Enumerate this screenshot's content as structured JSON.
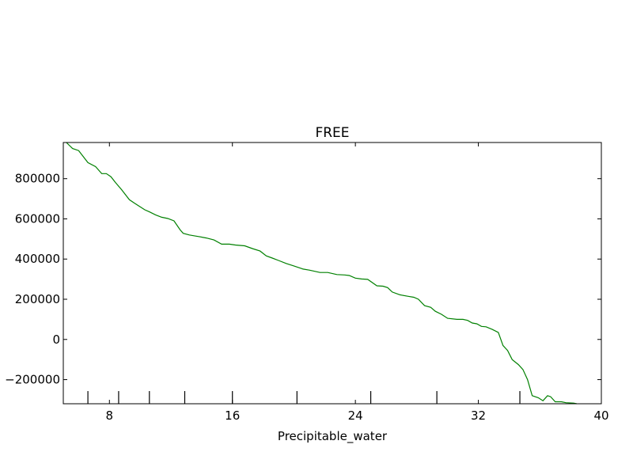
{
  "chart_data": {
    "type": "line",
    "title": "FREE",
    "xlabel": "Precipitable_water",
    "ylabel": "",
    "xlim": [
      5.0,
      40.0
    ],
    "ylim": [
      -320000,
      980000
    ],
    "xticks": [
      8,
      16,
      24,
      32,
      40
    ],
    "xtick_labels": [
      "8",
      "16",
      "24",
      "32",
      "40"
    ],
    "yticks": [
      -200000,
      0,
      200000,
      400000,
      600000,
      800000
    ],
    "ytick_labels": [
      "−200000",
      "0",
      "200000",
      "400000",
      "600000",
      "800000"
    ],
    "rug_x": [
      6.6,
      8.6,
      10.6,
      12.9,
      16.0,
      20.2,
      25.0,
      29.3,
      34.7
    ],
    "grid": false,
    "series": [
      {
        "color": "#008000",
        "x": [
          5.2,
          5.6,
          6.0,
          6.6,
          7.1,
          7.5,
          7.8,
          8.1,
          8.4,
          8.8,
          9.3,
          9.6,
          9.9,
          10.3,
          10.6,
          11.0,
          11.4,
          11.8,
          12.2,
          12.6,
          12.8,
          13.2,
          13.8,
          14.3,
          14.8,
          15.3,
          15.8,
          16.2,
          16.8,
          17.3,
          17.8,
          18.2,
          18.6,
          19.0,
          19.5,
          20.0,
          20.6,
          21.0,
          21.7,
          22.2,
          22.8,
          23.3,
          23.6,
          24.0,
          24.4,
          24.8,
          25.4,
          25.8,
          26.1,
          26.4,
          26.9,
          27.4,
          27.8,
          28.1,
          28.5,
          28.9,
          29.2,
          29.6,
          30.0,
          30.6,
          31.0,
          31.3,
          31.6,
          31.9,
          32.2,
          32.5,
          32.9,
          33.3,
          33.6,
          33.9,
          34.2,
          34.6,
          34.9,
          35.2,
          35.5,
          35.9,
          36.2,
          36.5,
          36.7,
          37.0,
          37.4,
          37.7,
          38.2,
          38.4
        ],
        "y": [
          980000,
          950000,
          940000,
          880000,
          860000,
          825000,
          825000,
          810000,
          780000,
          745000,
          695000,
          680000,
          665000,
          645000,
          635000,
          620000,
          608000,
          602000,
          590000,
          545000,
          528000,
          520000,
          512000,
          505000,
          495000,
          474000,
          474000,
          470000,
          466000,
          452000,
          440000,
          416000,
          405000,
          393000,
          378000,
          366000,
          350000,
          345000,
          333000,
          333000,
          323000,
          321000,
          318000,
          305000,
          301000,
          299000,
          267000,
          265000,
          258000,
          236000,
          222000,
          215000,
          210000,
          200000,
          168000,
          160000,
          140000,
          125000,
          105000,
          100000,
          100000,
          95000,
          82000,
          78000,
          65000,
          63000,
          50000,
          35000,
          -30000,
          -55000,
          -100000,
          -125000,
          -150000,
          -200000,
          -280000,
          -290000,
          -305000,
          -280000,
          -285000,
          -310000,
          -310000,
          -315000,
          -317000,
          -320000
        ]
      }
    ]
  }
}
